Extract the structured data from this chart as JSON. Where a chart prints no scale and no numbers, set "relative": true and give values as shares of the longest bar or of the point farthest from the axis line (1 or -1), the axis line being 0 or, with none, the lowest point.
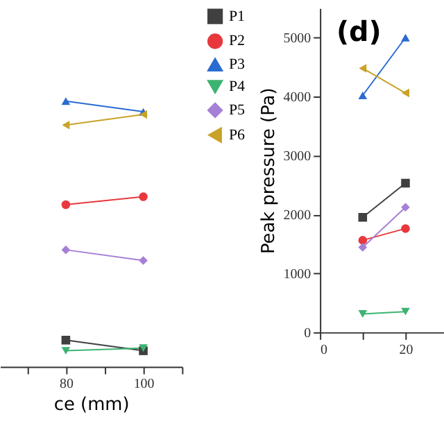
{
  "chart_data": [
    {
      "type": "line",
      "xlabel": "ce (mm)",
      "relative": true,
      "x": [
        80,
        100
      ],
      "xlim": [
        63,
        110
      ],
      "xticks": [
        {
          "value": 70,
          "label": null
        },
        80,
        {
          "value": 90,
          "label": null
        },
        100,
        {
          "value": 110,
          "label": null
        }
      ],
      "legend": "right",
      "tick_labels": "x",
      "grid": false,
      "series": [
        {
          "name": "P1",
          "color": "#404040",
          "marker": "square",
          "values": [
            0.1,
            0.06
          ]
        },
        {
          "name": "P2",
          "color": "#e8383d",
          "marker": "circle",
          "values": [
            0.61,
            0.64
          ]
        },
        {
          "name": "P3",
          "color": "#2a6bd1",
          "marker": "triangle-up",
          "values": [
            1.0,
            0.96
          ]
        },
        {
          "name": "P4",
          "color": "#3cb371",
          "marker": "triangle-down",
          "values": [
            0.06,
            0.07
          ]
        },
        {
          "name": "P5",
          "color": "#a67fd6",
          "marker": "diamond",
          "values": [
            0.44,
            0.4
          ]
        },
        {
          "name": "P6",
          "color": "#c9a227",
          "marker": "triangle-left",
          "values": [
            0.91,
            0.95
          ]
        }
      ]
    },
    {
      "type": "line",
      "ylabel": "Peak pressure (Pa)",
      "annotations": [
        "(d)"
      ],
      "x": [
        10,
        20
      ],
      "xlim": [
        0,
        29
      ],
      "xticks": [
        0,
        {
          "value": 10,
          "label": null
        },
        20
      ],
      "ylim": [
        0,
        5500
      ],
      "yticks": [
        0,
        1000,
        2000,
        3000,
        4000,
        5000
      ],
      "legend": false,
      "grid": false,
      "series": [
        {
          "color": "#404040",
          "marker": "square",
          "values": [
            1950,
            2530
          ]
        },
        {
          "color": "#e8383d",
          "marker": "circle",
          "values": [
            1560,
            1760
          ]
        },
        {
          "color": "#2a6bd1",
          "marker": "triangle-up",
          "values": [
            4020,
            5000
          ]
        },
        {
          "color": "#3cb371",
          "marker": "triangle-down",
          "values": [
            310,
            350
          ]
        },
        {
          "color": "#a67fd6",
          "marker": "diamond",
          "values": [
            1440,
            2120
          ]
        },
        {
          "color": "#c9a227",
          "marker": "triangle-left",
          "values": [
            4480,
            4060
          ]
        }
      ]
    }
  ]
}
